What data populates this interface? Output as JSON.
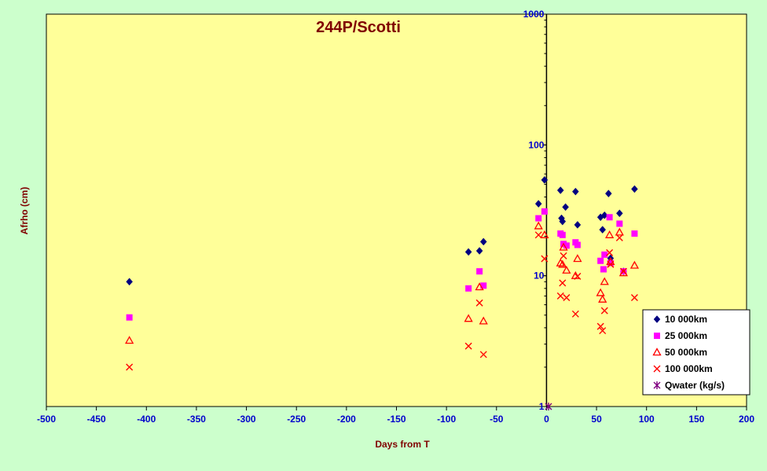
{
  "chart_data": {
    "type": "scatter",
    "title": "244P/Scotti",
    "xlabel": "Days from  T",
    "ylabel": "Afrho (cm)",
    "xlim": [
      -500,
      200
    ],
    "ylim": [
      1,
      1000
    ],
    "yscale": "log",
    "xticks": [
      -500,
      -450,
      -400,
      -350,
      -300,
      -250,
      -200,
      -150,
      -100,
      -50,
      0,
      50,
      100,
      150,
      200
    ],
    "yticks": [
      1,
      10,
      100,
      1000
    ],
    "grid": false,
    "legend_position": "bottom-right",
    "colors": {
      "plot_background": "#ffff99",
      "page_background": "#ccffcc",
      "zero_line": "#000000",
      "tick_labels": "#0000cc",
      "titles": "#800000"
    },
    "series": [
      {
        "name": "10 000km",
        "marker": "diamond",
        "color": "#000080",
        "points": [
          [
            -417,
            9.0
          ],
          [
            -78,
            15.2
          ],
          [
            -67,
            15.5
          ],
          [
            -63,
            18.2
          ],
          [
            -8,
            35.5
          ],
          [
            -2,
            54
          ],
          [
            14,
            45
          ],
          [
            15,
            27.5
          ],
          [
            16,
            26
          ],
          [
            19,
            33.5
          ],
          [
            29,
            44
          ],
          [
            31,
            24.5
          ],
          [
            54,
            28
          ],
          [
            56,
            22.5
          ],
          [
            58,
            29
          ],
          [
            62,
            42.5
          ],
          [
            64,
            13.6
          ],
          [
            73,
            30
          ],
          [
            77,
            10.8
          ],
          [
            88,
            46
          ]
        ]
      },
      {
        "name": "25 000km",
        "marker": "square",
        "color": "#ff00ff",
        "points": [
          [
            -417,
            4.8
          ],
          [
            -78,
            8.0
          ],
          [
            -67,
            10.8
          ],
          [
            -63,
            8.4
          ],
          [
            -8,
            27.5
          ],
          [
            -2,
            31
          ],
          [
            14,
            21
          ],
          [
            16,
            20.5
          ],
          [
            17,
            17.5
          ],
          [
            20,
            17
          ],
          [
            29,
            18
          ],
          [
            31,
            17.2
          ],
          [
            54,
            13
          ],
          [
            57,
            11.2
          ],
          [
            58,
            14.5
          ],
          [
            63,
            28
          ],
          [
            64,
            12.5
          ],
          [
            73,
            25
          ],
          [
            77,
            10.8
          ],
          [
            88,
            21
          ]
        ]
      },
      {
        "name": "50 000km",
        "marker": "triangle",
        "color": "#ff0000",
        "points": [
          [
            -417,
            3.2
          ],
          [
            -78,
            4.7
          ],
          [
            -67,
            8.2
          ],
          [
            -63,
            4.5
          ],
          [
            -8,
            24
          ],
          [
            -2,
            20.5
          ],
          [
            14,
            12.5
          ],
          [
            16,
            12.2
          ],
          [
            17,
            16.5
          ],
          [
            20,
            11
          ],
          [
            29,
            10
          ],
          [
            31,
            13.5
          ],
          [
            54,
            7.4
          ],
          [
            56,
            6.6
          ],
          [
            58,
            9
          ],
          [
            63,
            20.5
          ],
          [
            64,
            12.8
          ],
          [
            73,
            21.5
          ],
          [
            77,
            10.5
          ],
          [
            88,
            12
          ]
        ]
      },
      {
        "name": "100 000km",
        "marker": "x",
        "color": "#ff0000",
        "points": [
          [
            -417,
            2.0
          ],
          [
            -78,
            2.9
          ],
          [
            -67,
            6.2
          ],
          [
            -63,
            2.5
          ],
          [
            -8,
            20.5
          ],
          [
            -2,
            13.5
          ],
          [
            14,
            7.0
          ],
          [
            16,
            8.8
          ],
          [
            17,
            14.2
          ],
          [
            20,
            6.8
          ],
          [
            29,
            5.1
          ],
          [
            31,
            9.9
          ],
          [
            54,
            4.1
          ],
          [
            56,
            3.8
          ],
          [
            58,
            5.4
          ],
          [
            63,
            15
          ],
          [
            64,
            12.2
          ],
          [
            73,
            19.5
          ],
          [
            77,
            10.8
          ],
          [
            88,
            6.8
          ]
        ]
      },
      {
        "name": "Qwater (kg/s)",
        "marker": "star",
        "color": "#800080",
        "points": [
          [
            2,
            1.0
          ]
        ]
      }
    ]
  }
}
